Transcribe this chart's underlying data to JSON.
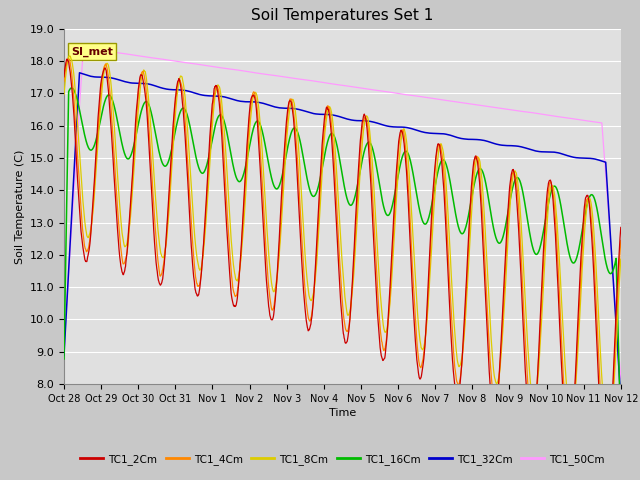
{
  "title": "Soil Temperatures Set 1",
  "xlabel": "Time",
  "ylabel": "Soil Temperature (C)",
  "ylim": [
    8.0,
    19.0
  ],
  "yticks": [
    8.0,
    9.0,
    10.0,
    11.0,
    12.0,
    13.0,
    14.0,
    15.0,
    16.0,
    17.0,
    18.0,
    19.0
  ],
  "n_days": 15,
  "colors": {
    "TC1_2Cm": "#cc0000",
    "TC1_4Cm": "#ff8800",
    "TC1_8Cm": "#ddcc00",
    "TC1_16Cm": "#00bb00",
    "TC1_32Cm": "#0000cc",
    "TC1_50Cm": "#ff99ff"
  },
  "legend_label": "SI_met",
  "fig_bg_color": "#c8c8c8",
  "plot_bg_color": "#e0e0e0",
  "annotation_box_color": "#ffff88",
  "annotation_text_color": "#660000",
  "grid_color": "#ffffff"
}
